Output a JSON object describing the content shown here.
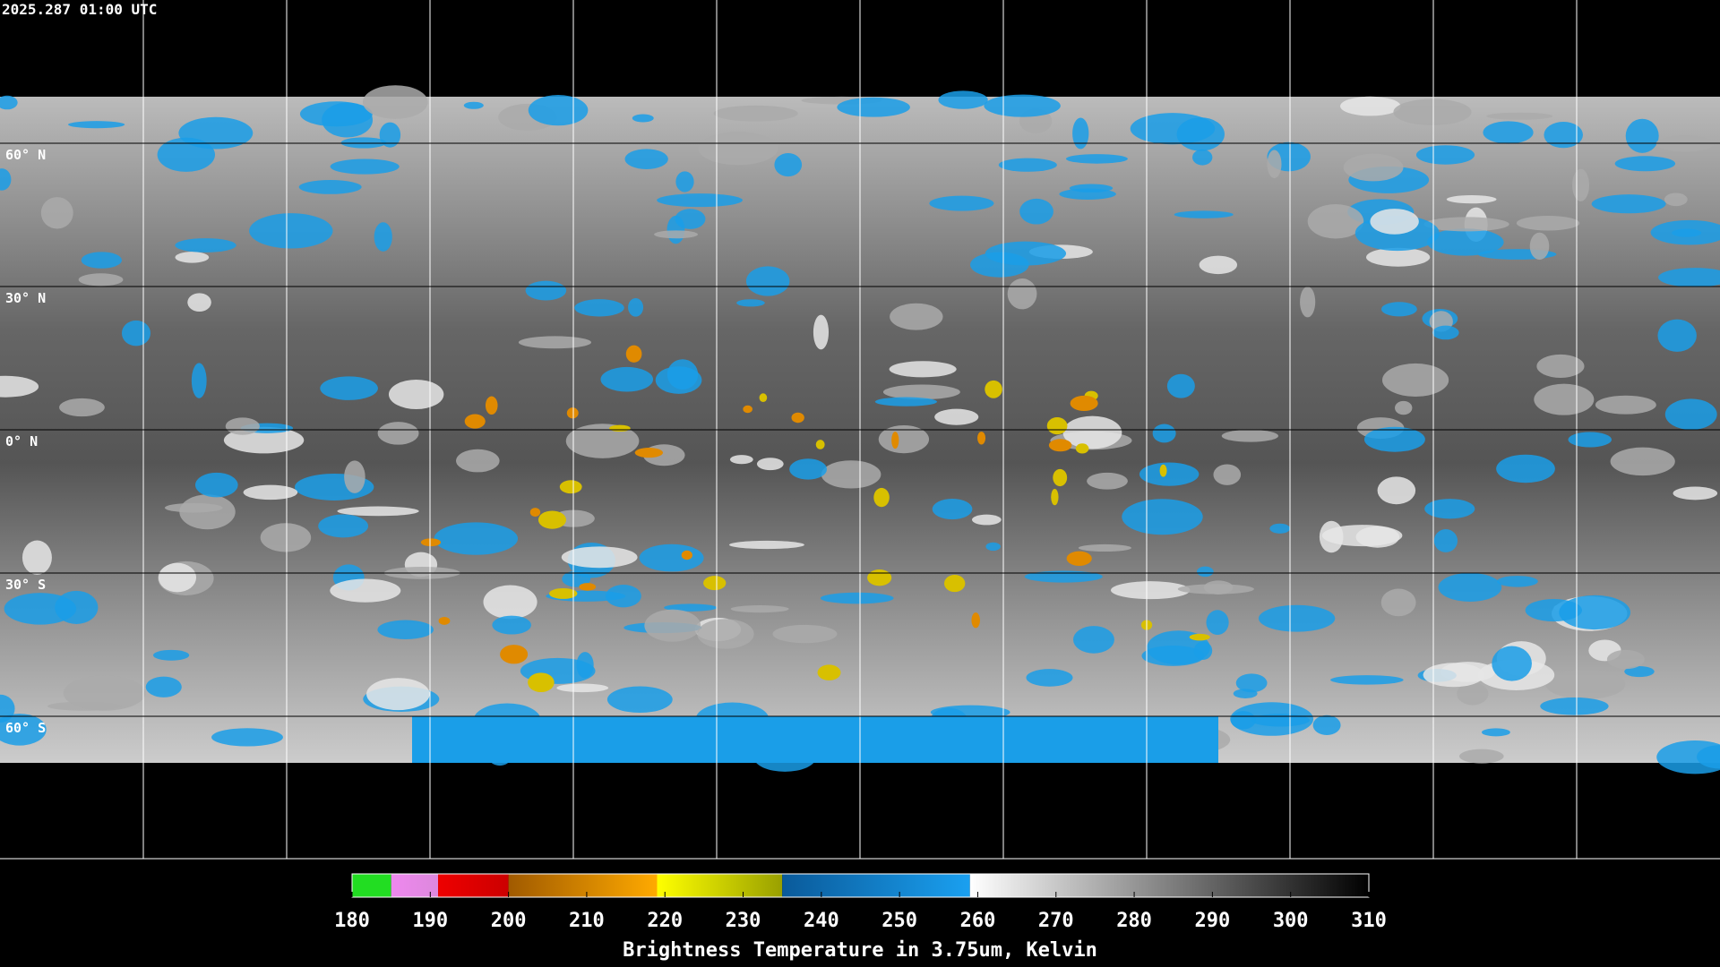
{
  "header": {
    "timestamp": "2025.287 01:00 UTC"
  },
  "map": {
    "lat_labels": [
      "60° N",
      "30° N",
      "0° N",
      "30° S",
      "60° S"
    ]
  },
  "colorbar": {
    "lim": [
      180,
      310
    ],
    "ticks": [
      180,
      190,
      200,
      210,
      220,
      230,
      240,
      250,
      260,
      270,
      280,
      290,
      300,
      310
    ],
    "title": "Brightness Temperature in 3.75um, Kelvin",
    "segments": [
      {
        "from": 180,
        "to": 185,
        "colors": [
          "#22dd22",
          "#22dd22"
        ]
      },
      {
        "from": 185,
        "to": 191,
        "colors": [
          "#ee88ee",
          "#dd88dd"
        ]
      },
      {
        "from": 191,
        "to": 200,
        "colors": [
          "#ee0000",
          "#cc0000"
        ]
      },
      {
        "from": 200,
        "to": 219,
        "colors": [
          "#a05a00",
          "#ffaa00"
        ]
      },
      {
        "from": 219,
        "to": 235,
        "colors": [
          "#ffff00",
          "#99a000"
        ]
      },
      {
        "from": 235,
        "to": 259,
        "colors": [
          "#0a5a9a",
          "#1aa0f0"
        ]
      },
      {
        "from": 259,
        "to": 310,
        "colors": [
          "#ffffff",
          "#000000"
        ]
      }
    ]
  }
}
